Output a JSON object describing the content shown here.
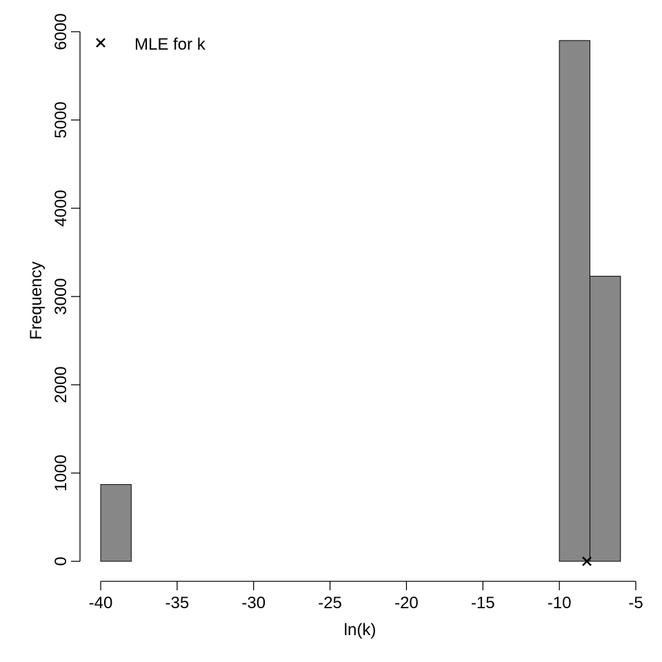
{
  "chart_data": {
    "type": "histogram",
    "title": "",
    "xlabel": "ln(k)",
    "ylabel": "Frequency",
    "bins": [
      {
        "start": -40,
        "end": -38,
        "count": 870
      },
      {
        "start": -38,
        "end": -36,
        "count": 0
      },
      {
        "start": -36,
        "end": -34,
        "count": 0
      },
      {
        "start": -34,
        "end": -32,
        "count": 0
      },
      {
        "start": -32,
        "end": -30,
        "count": 0
      },
      {
        "start": -30,
        "end": -28,
        "count": 0
      },
      {
        "start": -28,
        "end": -26,
        "count": 0
      },
      {
        "start": -26,
        "end": -24,
        "count": 0
      },
      {
        "start": -24,
        "end": -22,
        "count": 0
      },
      {
        "start": -22,
        "end": -20,
        "count": 0
      },
      {
        "start": -20,
        "end": -18,
        "count": 0
      },
      {
        "start": -18,
        "end": -16,
        "count": 0
      },
      {
        "start": -16,
        "end": -14,
        "count": 0
      },
      {
        "start": -14,
        "end": -12,
        "count": 0
      },
      {
        "start": -12,
        "end": -10,
        "count": 0
      },
      {
        "start": -10,
        "end": -8,
        "count": 5900
      },
      {
        "start": -8,
        "end": -6,
        "count": 3230
      }
    ],
    "xlim": [
      -40,
      -5
    ],
    "ylim": [
      0,
      6000
    ],
    "x_ticks": [
      -40,
      -35,
      -30,
      -25,
      -20,
      -15,
      -10,
      -5
    ],
    "x_tick_labels": [
      "-40",
      "-35",
      "-30",
      "-25",
      "-20",
      "-15",
      "-10",
      "-5"
    ],
    "y_ticks": [
      0,
      1000,
      2000,
      3000,
      4000,
      5000,
      6000
    ],
    "y_tick_labels": [
      "0",
      "1000",
      "2000",
      "3000",
      "4000",
      "5000",
      "6000"
    ],
    "marker": {
      "label": "MLE for k",
      "x": -8.2,
      "y": 0,
      "symbol": "x"
    },
    "legend": {
      "position": "top-left",
      "entries": [
        {
          "label": "MLE for k",
          "symbol": "x"
        }
      ]
    },
    "colors": {
      "bar_fill": "#878787",
      "bar_stroke": "#000000",
      "axis": "#000000"
    },
    "grid": false
  }
}
